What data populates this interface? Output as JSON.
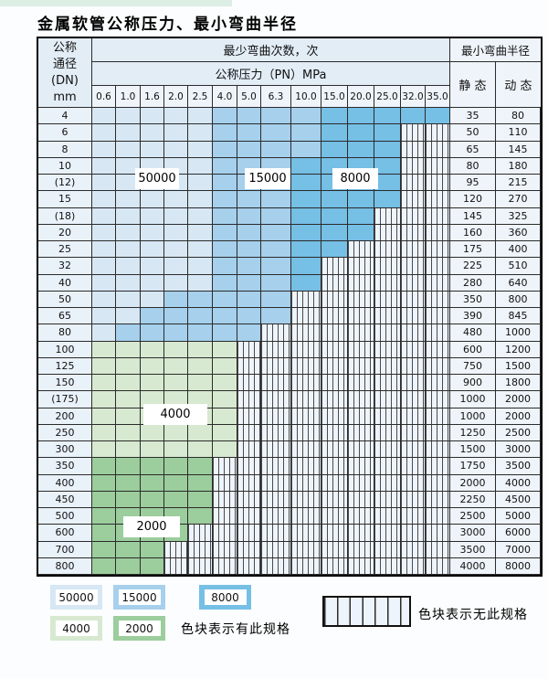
{
  "title": "金属软管公称压力、最小弯曲半径",
  "header": {
    "dn_lines": [
      "公称",
      "通径",
      "(DN)",
      "mm"
    ],
    "cycles_label": "最少弯曲次数，次",
    "pressure_label": "公称压力（PN）MPa",
    "pressures": [
      "0.6",
      "1.0",
      "1.6",
      "2.0",
      "2.5",
      "4.0",
      "5.0",
      "6.3",
      "10.0",
      "15.0",
      "20.0",
      "25.0",
      "32.0",
      "35.0"
    ],
    "radius_label": "最小弯曲半径",
    "static_label": "静 态",
    "dynamic_label": "动 态"
  },
  "zone_tags": [
    "50000",
    "15000",
    "8000",
    "4000",
    "2000"
  ],
  "rows": [
    {
      "dn": "4",
      "static": "35",
      "dynamic": "80",
      "zones": [
        "b1",
        "b1",
        "b1",
        "b1",
        "b1",
        "b2",
        "b2",
        "b2",
        "b2",
        "b3",
        "b3",
        "b3",
        "b3",
        "b3"
      ]
    },
    {
      "dn": "6",
      "static": "50",
      "dynamic": "110",
      "zones": [
        "b1",
        "b1",
        "b1",
        "b1",
        "b1",
        "b2",
        "b2",
        "b2",
        "b2",
        "b3",
        "b3",
        "b3",
        "x",
        "x"
      ]
    },
    {
      "dn": "8",
      "static": "65",
      "dynamic": "145",
      "zones": [
        "b1",
        "b1",
        "b1",
        "b1",
        "b1",
        "b2",
        "b2",
        "b2",
        "b2",
        "b3",
        "b3",
        "b3",
        "x",
        "x"
      ]
    },
    {
      "dn": "10",
      "static": "80",
      "dynamic": "180",
      "zones": [
        "b1",
        "b1",
        "b1",
        "b1",
        "b1",
        "b2",
        "b2",
        "b2",
        "b3",
        "b3",
        "b3",
        "b3",
        "x",
        "x"
      ]
    },
    {
      "dn": "(12)",
      "static": "95",
      "dynamic": "215",
      "zones": [
        "b1",
        "b1",
        "b1",
        "b1",
        "b1",
        "b2",
        "b2",
        "b2",
        "b3",
        "b3",
        "b3",
        "b3",
        "x",
        "x"
      ]
    },
    {
      "dn": "15",
      "static": "120",
      "dynamic": "270",
      "zones": [
        "b1",
        "b1",
        "b1",
        "b1",
        "b1",
        "b2",
        "b2",
        "b2",
        "b3",
        "b3",
        "b3",
        "b3",
        "x",
        "x"
      ]
    },
    {
      "dn": "(18)",
      "static": "145",
      "dynamic": "325",
      "zones": [
        "b1",
        "b1",
        "b1",
        "b1",
        "b1",
        "b2",
        "b2",
        "b2",
        "b3",
        "b3",
        "b3",
        "x",
        "x",
        "x"
      ]
    },
    {
      "dn": "20",
      "static": "160",
      "dynamic": "360",
      "zones": [
        "b1",
        "b1",
        "b1",
        "b1",
        "b1",
        "b2",
        "b2",
        "b2",
        "b3",
        "b3",
        "b3",
        "x",
        "x",
        "x"
      ]
    },
    {
      "dn": "25",
      "static": "175",
      "dynamic": "400",
      "zones": [
        "b1",
        "b1",
        "b1",
        "b1",
        "b1",
        "b2",
        "b2",
        "b2",
        "b3",
        "b3",
        "x",
        "x",
        "x",
        "x"
      ]
    },
    {
      "dn": "32",
      "static": "225",
      "dynamic": "510",
      "zones": [
        "b1",
        "b1",
        "b1",
        "b1",
        "b1",
        "b2",
        "b2",
        "b2",
        "b3",
        "x",
        "x",
        "x",
        "x",
        "x"
      ]
    },
    {
      "dn": "40",
      "static": "280",
      "dynamic": "640",
      "zones": [
        "b1",
        "b1",
        "b1",
        "b1",
        "b1",
        "b2",
        "b2",
        "b2",
        "b3",
        "x",
        "x",
        "x",
        "x",
        "x"
      ]
    },
    {
      "dn": "50",
      "static": "350",
      "dynamic": "800",
      "zones": [
        "b1",
        "b1",
        "b1",
        "b2",
        "b2",
        "b2",
        "b2",
        "b2",
        "x",
        "x",
        "x",
        "x",
        "x",
        "x"
      ]
    },
    {
      "dn": "65",
      "static": "390",
      "dynamic": "845",
      "zones": [
        "b1",
        "b1",
        "b2",
        "b2",
        "b2",
        "b2",
        "b2",
        "b2",
        "x",
        "x",
        "x",
        "x",
        "x",
        "x"
      ]
    },
    {
      "dn": "80",
      "static": "480",
      "dynamic": "1000",
      "zones": [
        "b1",
        "b2",
        "b2",
        "b2",
        "b2",
        "b2",
        "b2",
        "x",
        "x",
        "x",
        "x",
        "x",
        "x",
        "x"
      ]
    },
    {
      "dn": "100",
      "static": "600",
      "dynamic": "1200",
      "zones": [
        "g1",
        "g1",
        "g1",
        "g1",
        "g1",
        "g1",
        "x",
        "x",
        "x",
        "x",
        "x",
        "x",
        "x",
        "x"
      ]
    },
    {
      "dn": "125",
      "static": "750",
      "dynamic": "1500",
      "zones": [
        "g1",
        "g1",
        "g1",
        "g1",
        "g1",
        "g1",
        "x",
        "x",
        "x",
        "x",
        "x",
        "x",
        "x",
        "x"
      ]
    },
    {
      "dn": "150",
      "static": "900",
      "dynamic": "1800",
      "zones": [
        "g1",
        "g1",
        "g1",
        "g1",
        "g1",
        "g1",
        "x",
        "x",
        "x",
        "x",
        "x",
        "x",
        "x",
        "x"
      ]
    },
    {
      "dn": "(175)",
      "static": "1000",
      "dynamic": "2000",
      "zones": [
        "g1",
        "g1",
        "g1",
        "g1",
        "g1",
        "g1",
        "x",
        "x",
        "x",
        "x",
        "x",
        "x",
        "x",
        "x"
      ]
    },
    {
      "dn": "200",
      "static": "1000",
      "dynamic": "2000",
      "zones": [
        "g1",
        "g1",
        "g1",
        "g1",
        "g1",
        "g1",
        "x",
        "x",
        "x",
        "x",
        "x",
        "x",
        "x",
        "x"
      ]
    },
    {
      "dn": "250",
      "static": "1250",
      "dynamic": "2500",
      "zones": [
        "g1",
        "g1",
        "g1",
        "g1",
        "g1",
        "g1",
        "x",
        "x",
        "x",
        "x",
        "x",
        "x",
        "x",
        "x"
      ]
    },
    {
      "dn": "300",
      "static": "1500",
      "dynamic": "3000",
      "zones": [
        "g1",
        "g1",
        "g1",
        "g1",
        "g1",
        "g1",
        "x",
        "x",
        "x",
        "x",
        "x",
        "x",
        "x",
        "x"
      ]
    },
    {
      "dn": "350",
      "static": "1750",
      "dynamic": "3500",
      "zones": [
        "g2",
        "g2",
        "g2",
        "g2",
        "g2",
        "x",
        "x",
        "x",
        "x",
        "x",
        "x",
        "x",
        "x",
        "x"
      ]
    },
    {
      "dn": "400",
      "static": "2000",
      "dynamic": "4000",
      "zones": [
        "g2",
        "g2",
        "g2",
        "g2",
        "g2",
        "x",
        "x",
        "x",
        "x",
        "x",
        "x",
        "x",
        "x",
        "x"
      ]
    },
    {
      "dn": "450",
      "static": "2250",
      "dynamic": "4500",
      "zones": [
        "g2",
        "g2",
        "g2",
        "g2",
        "g2",
        "x",
        "x",
        "x",
        "x",
        "x",
        "x",
        "x",
        "x",
        "x"
      ]
    },
    {
      "dn": "500",
      "static": "2500",
      "dynamic": "5000",
      "zones": [
        "g2",
        "g2",
        "g2",
        "g2",
        "g2",
        "x",
        "x",
        "x",
        "x",
        "x",
        "x",
        "x",
        "x",
        "x"
      ]
    },
    {
      "dn": "600",
      "static": "3000",
      "dynamic": "6000",
      "zones": [
        "g2",
        "g2",
        "g2",
        "g2",
        "x",
        "x",
        "x",
        "x",
        "x",
        "x",
        "x",
        "x",
        "x",
        "x"
      ]
    },
    {
      "dn": "700",
      "static": "3500",
      "dynamic": "7000",
      "zones": [
        "g2",
        "g2",
        "g2",
        "x",
        "x",
        "x",
        "x",
        "x",
        "x",
        "x",
        "x",
        "x",
        "x",
        "x"
      ]
    },
    {
      "dn": "800",
      "static": "4000",
      "dynamic": "8000",
      "zones": [
        "g2",
        "g2",
        "g2",
        "x",
        "x",
        "x",
        "x",
        "x",
        "x",
        "x",
        "x",
        "x",
        "x",
        "x"
      ]
    }
  ],
  "legend": {
    "swatches_row1": [
      {
        "label": "50000",
        "zone": "b1"
      },
      {
        "label": "15000",
        "zone": "b2"
      },
      {
        "label": "8000",
        "zone": "b3"
      }
    ],
    "swatches_row2": [
      {
        "label": "4000",
        "zone": "g1"
      },
      {
        "label": "2000",
        "zone": "g2"
      }
    ],
    "has_spec_text": "色块表示有此规格",
    "no_spec_text": "色块表示无此规格"
  },
  "colors": {
    "zone_50000": "#d7e7f4",
    "zone_15000": "#a6d0ec",
    "zone_8000": "#76bfe5",
    "zone_4000": "#d7e9d0",
    "zone_2000": "#9ccd9d",
    "hatch_bg": "#eef4fb",
    "hatch_line": "#4a4a4a",
    "grid_line": "#2b2b2b",
    "header_bg": "#e2edf6",
    "cell_label_bg": "#e9f1f9",
    "top_strip": "#ddeee4"
  }
}
